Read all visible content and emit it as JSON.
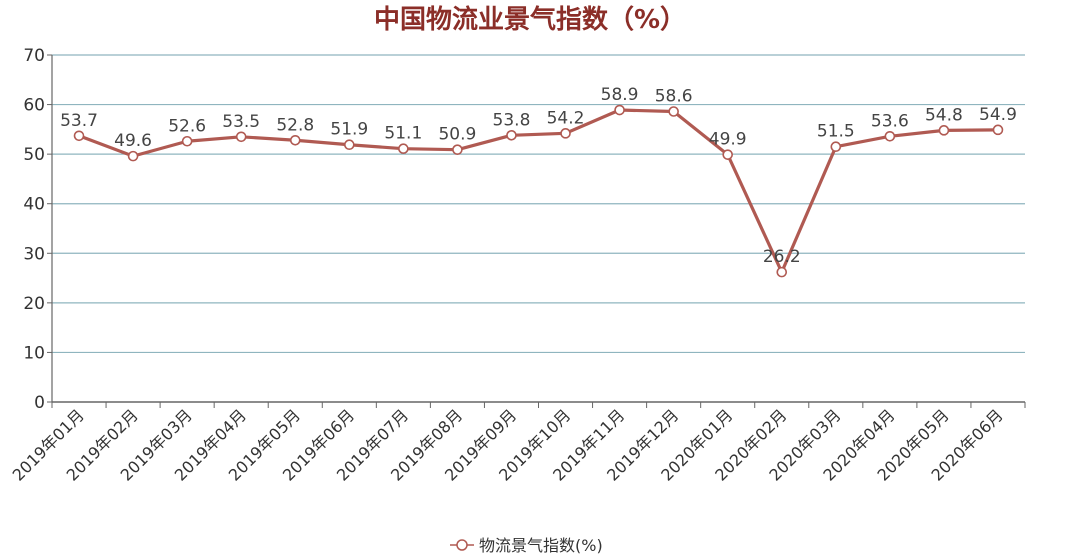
{
  "chart_data": {
    "type": "line",
    "title": "中国物流业景气指数（%）",
    "xlabel": "",
    "ylabel": "",
    "ylim": [
      0,
      70
    ],
    "yticks": [
      0,
      10,
      20,
      30,
      40,
      50,
      60,
      70
    ],
    "grid": true,
    "legend_position": "bottom-center",
    "categories": [
      "2019年01月",
      "2019年02月",
      "2019年03月",
      "2019年04月",
      "2019年05月",
      "2019年06月",
      "2019年07月",
      "2019年08月",
      "2019年09月",
      "2019年10月",
      "2019年11月",
      "2019年12月",
      "2020年01月",
      "2020年02月",
      "2020年03月",
      "2020年04月",
      "2020年05月",
      "2020年06月"
    ],
    "series": [
      {
        "name": "物流景气指数(%)",
        "color": "#b05a52",
        "values": [
          53.7,
          49.6,
          52.6,
          53.5,
          52.8,
          51.9,
          51.1,
          50.9,
          53.8,
          54.2,
          58.9,
          58.6,
          49.9,
          26.2,
          51.5,
          53.6,
          54.8,
          54.9
        ],
        "data_labels": [
          "53.7",
          "49.6",
          "52.6",
          "53.5",
          "52.8",
          "51.9",
          "51.1",
          "50.9",
          "53.8",
          "54.2",
          "58.9",
          "58.6",
          "49.9",
          "26.2",
          "51.5",
          "53.6",
          "54.8",
          "54.9"
        ]
      }
    ],
    "colors": {
      "title": "#8b2e28",
      "grid": "#8fb5bf",
      "axis": "#666666",
      "text": "#333333"
    }
  }
}
